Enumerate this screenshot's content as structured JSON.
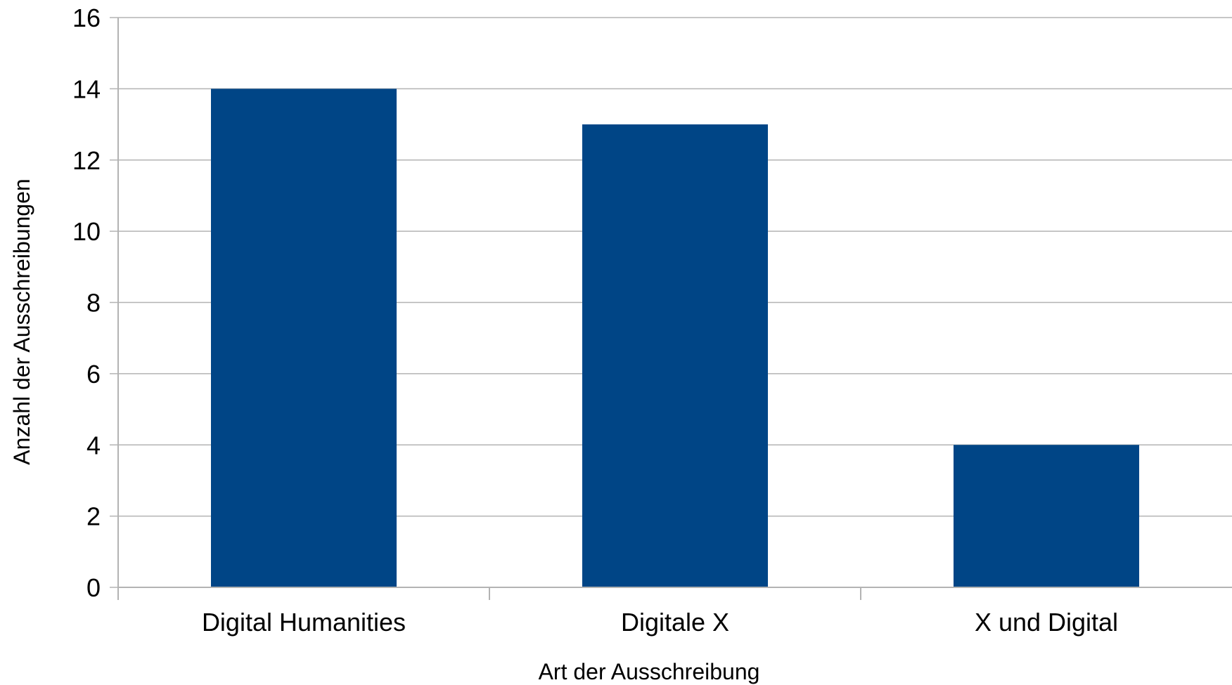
{
  "chart_data": {
    "type": "bar",
    "categories": [
      "Digital Humanities",
      "Digitale X",
      "X und Digital"
    ],
    "values": [
      14,
      13,
      4
    ],
    "title": "",
    "xlabel": "Art der Ausschreibung",
    "ylabel": "Anzahl der Ausschreibungen",
    "ylim": [
      0,
      16
    ],
    "yticks": [
      0,
      2,
      4,
      6,
      8,
      10,
      12,
      14,
      16
    ],
    "grid": true,
    "legend": "none",
    "bar_color": "#004586"
  }
}
